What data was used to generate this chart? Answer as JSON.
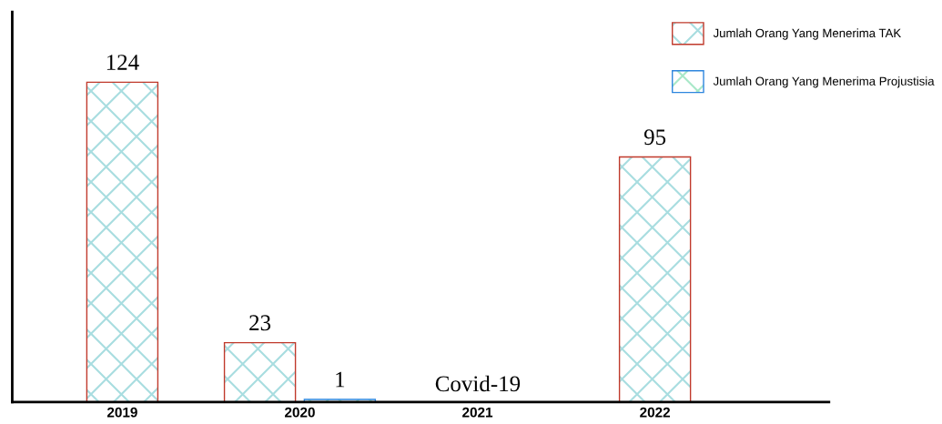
{
  "chart_data": {
    "type": "bar",
    "categories": [
      "2019",
      "2020",
      "2021",
      "2022"
    ],
    "series": [
      {
        "name": "Jumlah Orang Yang Menerima TAK",
        "color": "#c0392b",
        "values": [
          124,
          23,
          null,
          95
        ]
      },
      {
        "name": "Jumlah Orang Yang Menerima Projustisia",
        "color": "#2e86de",
        "values": [
          null,
          1,
          null,
          null
        ]
      }
    ],
    "data_labels": true,
    "legend": "top right",
    "grid": false,
    "annotations": [
      "Covid-19"
    ]
  }
}
